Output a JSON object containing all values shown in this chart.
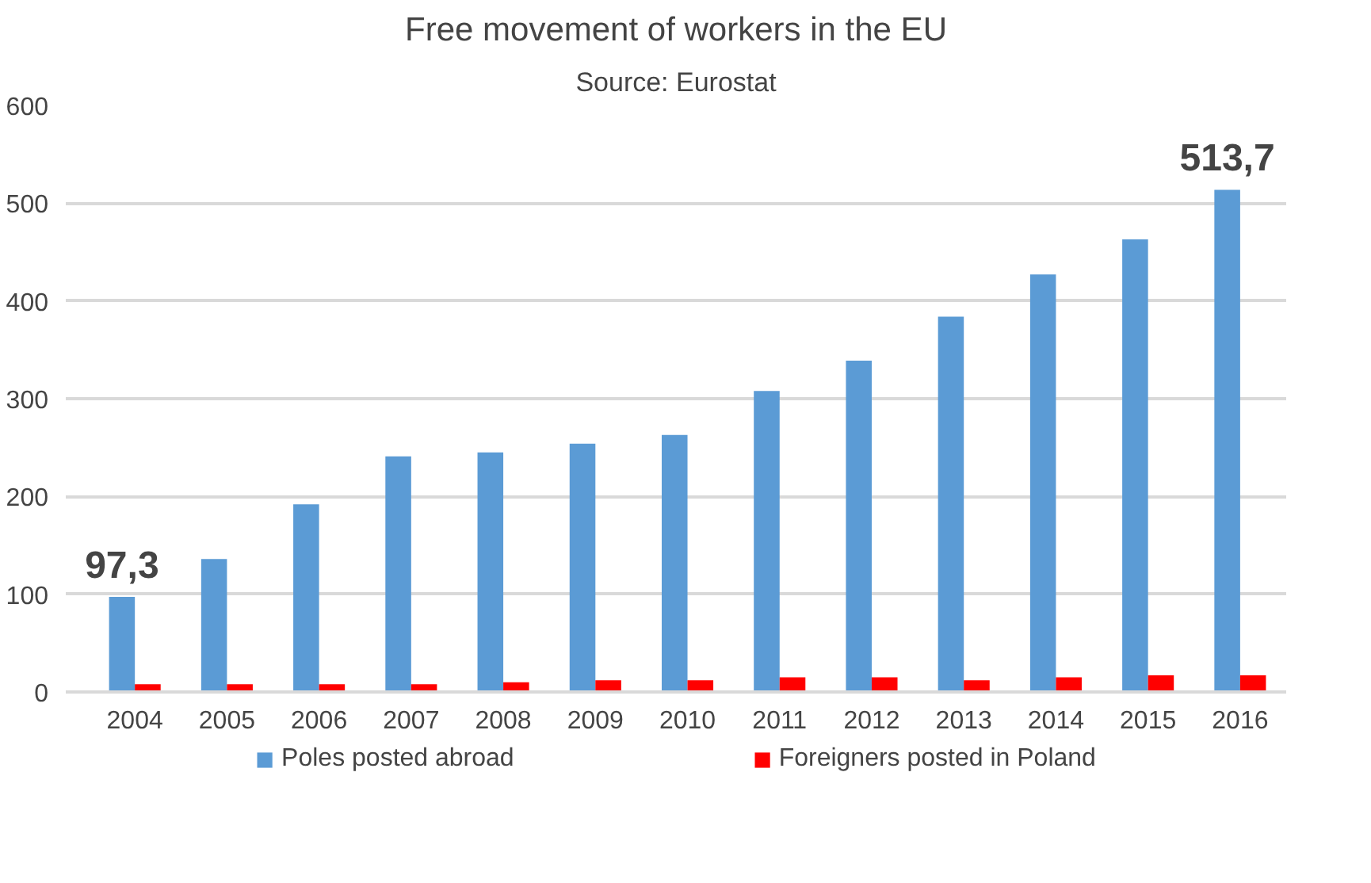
{
  "chart_data": {
    "type": "bar",
    "title": "Free movement of workers in the EU",
    "subtitle": "Source: Eurostat",
    "categories": [
      "2004",
      "2005",
      "2006",
      "2007",
      "2008",
      "2009",
      "2010",
      "2011",
      "2012",
      "2013",
      "2014",
      "2015",
      "2016"
    ],
    "series": [
      {
        "name": "Poles posted abroad",
        "color": "#5b9bd5",
        "values": [
          97.3,
          136,
          192,
          241,
          245,
          254,
          263,
          308,
          339,
          384,
          427,
          463,
          513.7
        ],
        "value_labels": [
          "97,3",
          null,
          null,
          null,
          null,
          null,
          null,
          null,
          null,
          null,
          null,
          null,
          "513,7"
        ]
      },
      {
        "name": "Foreigners posted in Poland",
        "color": "#ff0000",
        "values": [
          8,
          8,
          8,
          8,
          10,
          12,
          12,
          15,
          15,
          12,
          15,
          17,
          17
        ]
      }
    ],
    "ylim": [
      0,
      600
    ],
    "yticks": [
      0,
      100,
      200,
      300,
      400,
      500,
      600
    ],
    "grid": "y",
    "legend": "bottom"
  }
}
